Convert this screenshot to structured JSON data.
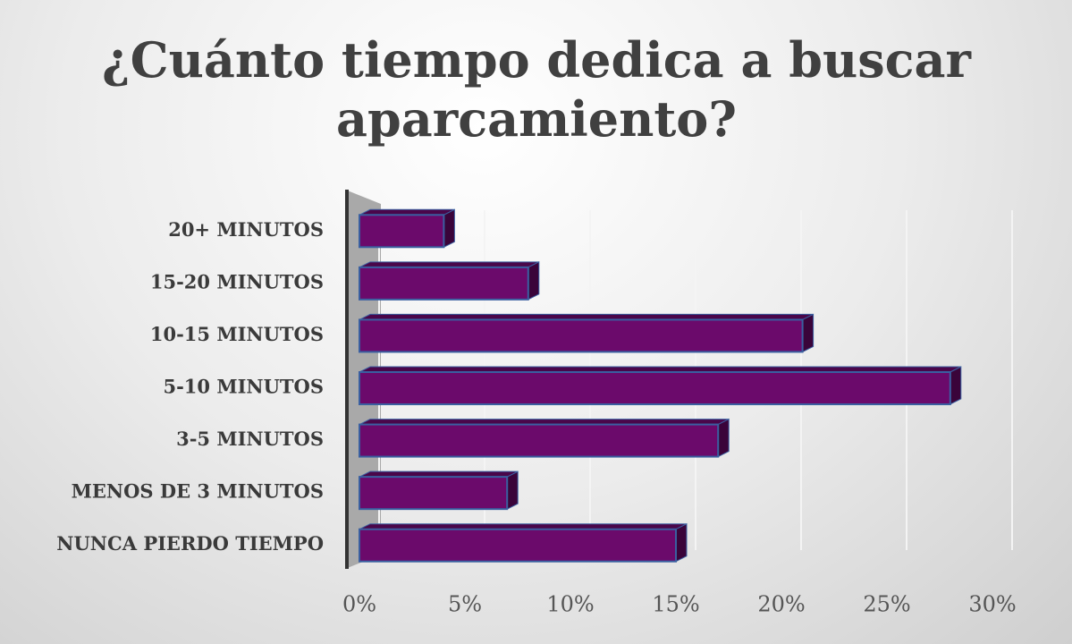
{
  "chart_data": {
    "type": "bar",
    "orientation": "horizontal",
    "title": "¿Cuánto tiempo dedica a buscar aparcamiento?",
    "categories": [
      "20+ MINUTOS",
      "15-20 MINUTOS",
      "10-15 MINUTOS",
      "5-10 MINUTOS",
      "3-5 MINUTOS",
      "MENOS DE 3 MINUTOS",
      "NUNCA PIERDO TIEMPO"
    ],
    "values": [
      4,
      8,
      21,
      28,
      17,
      7,
      15
    ],
    "color": "#6b0a6b",
    "xlim": [
      0,
      30
    ],
    "xticks": [
      {
        "value": 0,
        "label": "0%"
      },
      {
        "value": 5,
        "label": "5%"
      },
      {
        "value": 10,
        "label": "10%"
      },
      {
        "value": 15,
        "label": "15%"
      },
      {
        "value": 20,
        "label": "20%"
      },
      {
        "value": 25,
        "label": "25%"
      },
      {
        "value": 30,
        "label": "30%"
      }
    ],
    "grid": true
  }
}
